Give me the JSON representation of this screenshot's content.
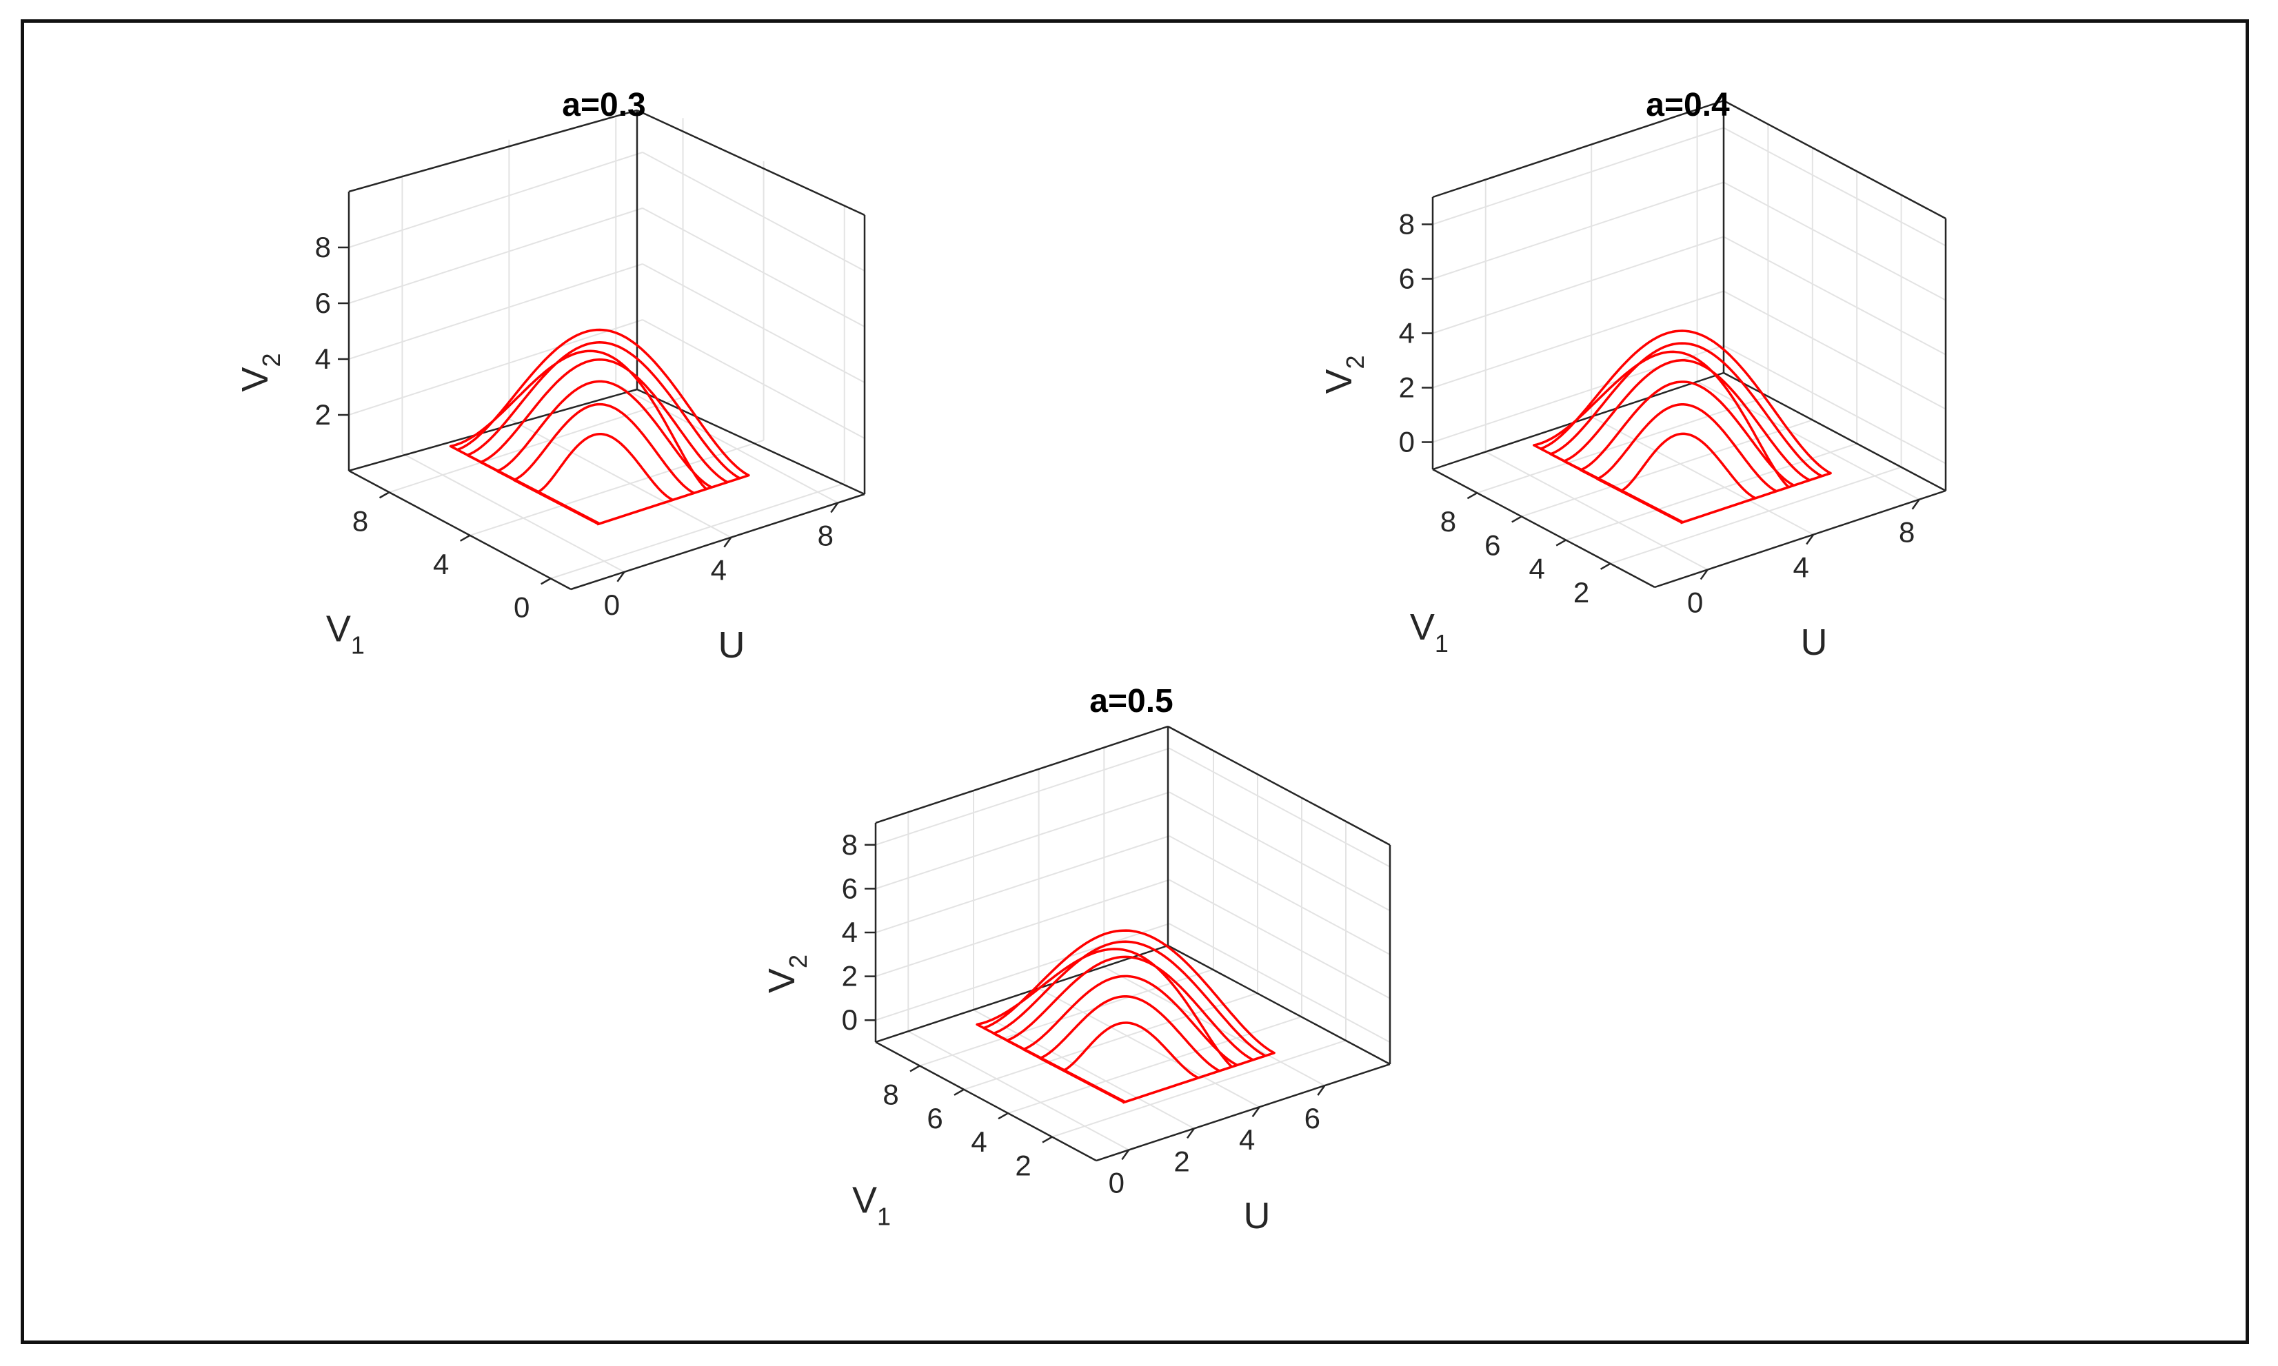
{
  "chart_data": [
    {
      "type": "line3d",
      "title": "a=0.3",
      "xlabel": "U",
      "ylabel_main": "V",
      "ylabel_sub": "1",
      "zlabel_main": "V",
      "zlabel_sub": "2",
      "xlim": [
        -2,
        9
      ],
      "ylim": [
        -1,
        10
      ],
      "zlim": [
        0,
        10
      ],
      "xticks": [
        "0",
        "4",
        "8"
      ],
      "yticks": [
        "0",
        "4",
        "8"
      ],
      "zticks": [
        "2",
        "4",
        "6",
        "8"
      ],
      "grid": true,
      "line_color": "#ff0000"
    },
    {
      "type": "line3d",
      "title": "a=0.4",
      "xlabel": "U",
      "ylabel_main": "V",
      "ylabel_sub": "1",
      "zlabel_main": "V",
      "zlabel_sub": "2",
      "xlim": [
        -2,
        9
      ],
      "ylim": [
        0,
        10
      ],
      "zlim": [
        -1,
        9
      ],
      "xticks": [
        "0",
        "4",
        "8"
      ],
      "yticks": [
        "2",
        "4",
        "6",
        "8"
      ],
      "zticks": [
        "0",
        "2",
        "4",
        "6",
        "8"
      ],
      "grid": true,
      "line_color": "#ff0000"
    },
    {
      "type": "line3d",
      "title": "a=0.5",
      "xlabel": "U",
      "ylabel_main": "V",
      "ylabel_sub": "1",
      "zlabel_main": "V",
      "zlabel_sub": "2",
      "xlim": [
        -1,
        8
      ],
      "ylim": [
        0,
        10
      ],
      "zlim": [
        -1,
        9
      ],
      "xticks": [
        "0",
        "2",
        "4",
        "6"
      ],
      "yticks": [
        "2",
        "4",
        "6",
        "8"
      ],
      "zticks": [
        "0",
        "2",
        "4",
        "6",
        "8"
      ],
      "grid": true,
      "line_color": "#ff0000"
    }
  ]
}
